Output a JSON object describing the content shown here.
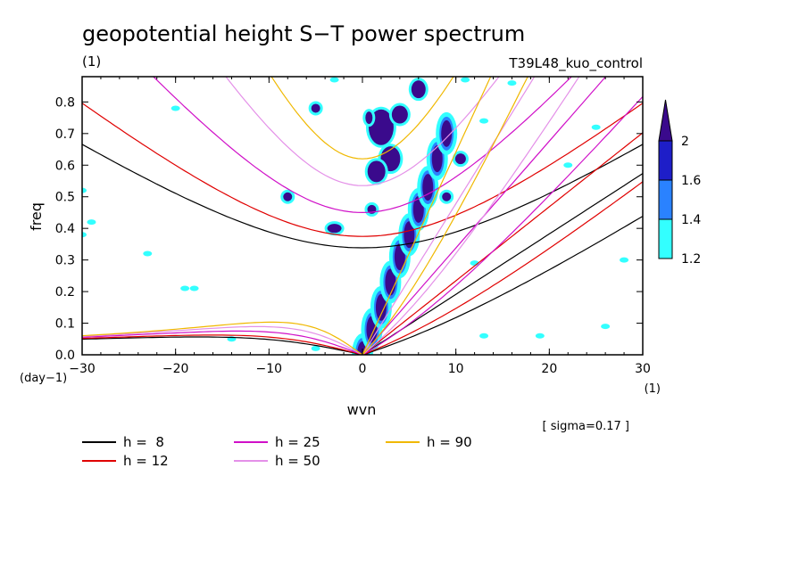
{
  "title": "geopotential height S−T power spectrum",
  "subtitle_left": "(1)",
  "subtitle_right": "T39L48_kuo_control",
  "x_unit": "(1)",
  "y_unit": "(day−1)",
  "note": "[ sigma=0.17 ]",
  "chart_data": {
    "type": "heatmap",
    "title": "geopotential height S−T power spectrum",
    "xlabel": "wvn",
    "ylabel": "freq",
    "xlim": [
      -30,
      30
    ],
    "ylim": [
      0,
      0.88
    ],
    "xticks": [
      -30,
      -20,
      -10,
      0,
      10,
      20,
      30
    ],
    "yticks": [
      0.0,
      0.1,
      0.2,
      0.3,
      0.4,
      0.5,
      0.6,
      0.7,
      0.8
    ],
    "grid": false,
    "colorbar": {
      "levels": [
        1.2,
        1.4,
        1.6,
        2
      ],
      "colors": [
        "#33ffff",
        "#2a82ff",
        "#1e1ec8",
        "#3a0a8c"
      ]
    },
    "dispersion_curves": [
      {
        "name": "h =  8",
        "h": 8,
        "color": "#000000"
      },
      {
        "name": "h = 12",
        "h": 12,
        "color": "#e00000"
      },
      {
        "name": "h = 25",
        "h": 25,
        "color": "#d010c8"
      },
      {
        "name": "h = 50",
        "h": 50,
        "color": "#e490e8"
      },
      {
        "name": "h = 90",
        "h": 90,
        "color": "#f0b800"
      }
    ],
    "kelvin_band": [
      {
        "x": 0,
        "y": 0.0
      },
      {
        "x": 1,
        "y": 0.08
      },
      {
        "x": 2,
        "y": 0.15
      },
      {
        "x": 3,
        "y": 0.23
      },
      {
        "x": 4,
        "y": 0.31
      },
      {
        "x": 5,
        "y": 0.38
      },
      {
        "x": 6,
        "y": 0.46
      },
      {
        "x": 7,
        "y": 0.53
      },
      {
        "x": 8,
        "y": 0.62
      },
      {
        "x": 9,
        "y": 0.7
      }
    ]
  }
}
